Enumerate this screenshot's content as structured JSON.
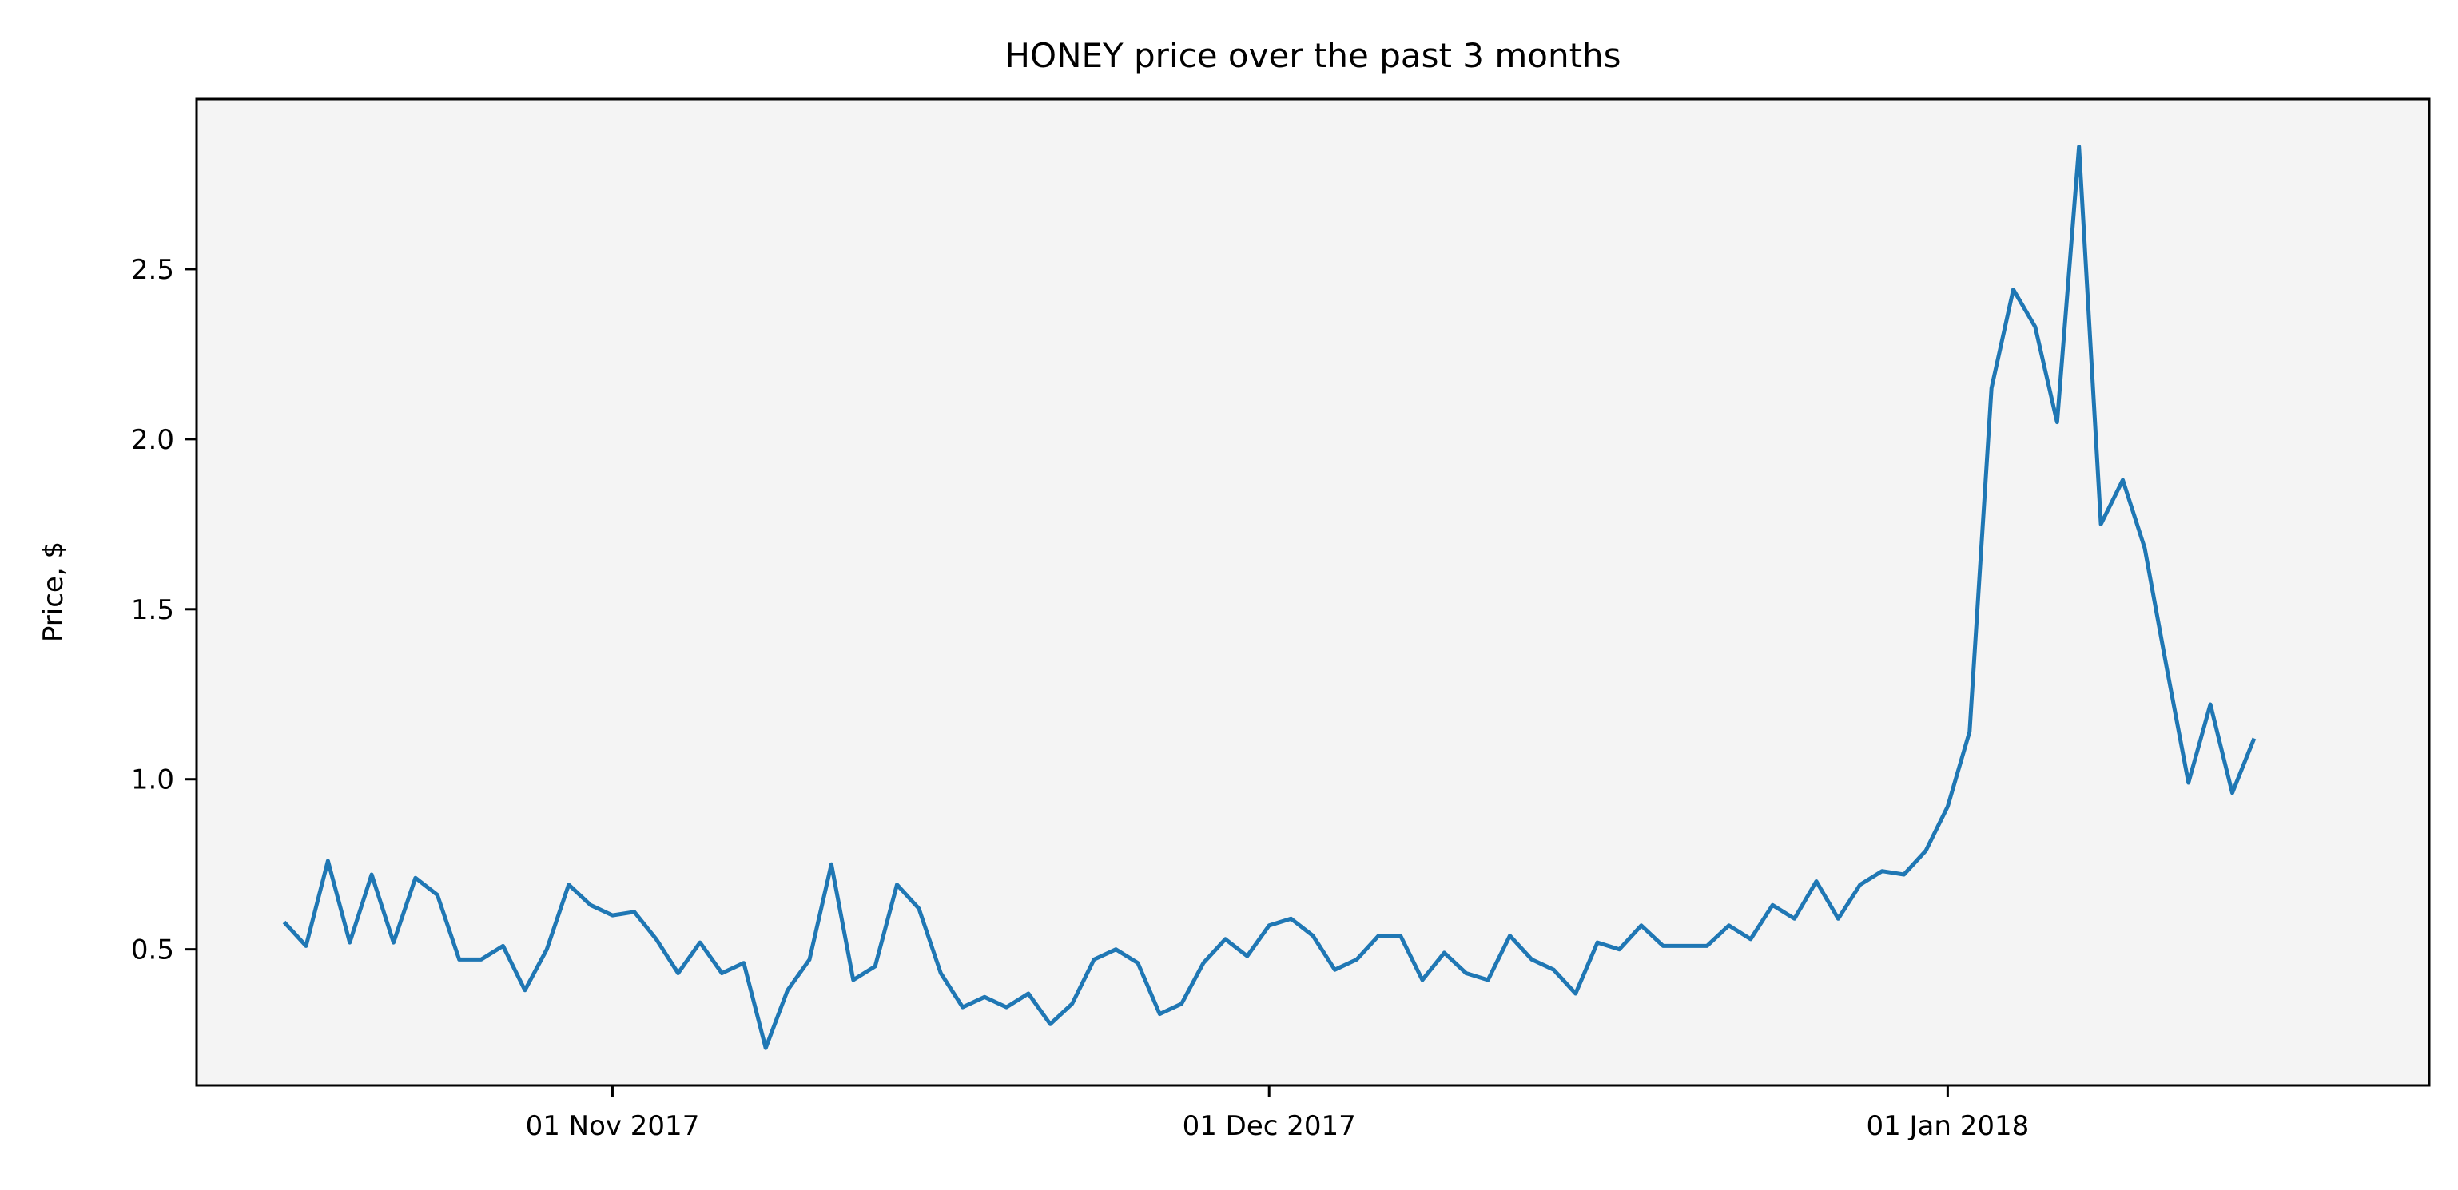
{
  "chart_data": {
    "type": "line",
    "title": "HONEY price over the past 3 months",
    "xlabel": "",
    "ylabel": "Price, $",
    "x_start": "2017-10-17",
    "x_end": "2018-01-20",
    "xlim": [
      "2017-10-13",
      "2018-01-23"
    ],
    "ylim": [
      0.1,
      3.0
    ],
    "x_ticks": [
      {
        "date": "2017-11-01",
        "label": "01 Nov 2017"
      },
      {
        "date": "2017-12-01",
        "label": "01 Dec 2017"
      },
      {
        "date": "2018-01-01",
        "label": "01 Jan 2018"
      }
    ],
    "y_ticks": [
      {
        "value": 0.5,
        "label": "0.5"
      },
      {
        "value": 1.0,
        "label": "1.0"
      },
      {
        "value": 1.5,
        "label": "1.5"
      },
      {
        "value": 2.0,
        "label": "2.0"
      },
      {
        "value": 2.5,
        "label": "2.5"
      }
    ],
    "grid": false,
    "background": "#f4f4f4",
    "series": [
      {
        "color": "#1f77b4",
        "values": [
          0.58,
          0.51,
          0.76,
          0.52,
          0.72,
          0.52,
          0.71,
          0.66,
          0.47,
          0.47,
          0.51,
          0.38,
          0.5,
          0.69,
          0.63,
          0.6,
          0.61,
          0.53,
          0.43,
          0.52,
          0.43,
          0.46,
          0.21,
          0.38,
          0.47,
          0.75,
          0.41,
          0.45,
          0.69,
          0.62,
          0.43,
          0.33,
          0.36,
          0.33,
          0.37,
          0.28,
          0.34,
          0.47,
          0.5,
          0.46,
          0.31,
          0.34,
          0.46,
          0.53,
          0.48,
          0.57,
          0.59,
          0.54,
          0.44,
          0.47,
          0.54,
          0.54,
          0.41,
          0.49,
          0.43,
          0.41,
          0.54,
          0.47,
          0.44,
          0.37,
          0.52,
          0.5,
          0.57,
          0.51,
          0.51,
          0.51,
          0.57,
          0.53,
          0.63,
          0.59,
          0.7,
          0.59,
          0.69,
          0.73,
          0.72,
          0.79,
          0.92,
          1.14,
          2.15,
          2.44,
          2.33,
          2.05,
          2.86,
          1.75,
          1.88,
          1.68,
          1.33,
          0.99,
          1.22,
          0.96,
          1.12
        ]
      }
    ]
  }
}
